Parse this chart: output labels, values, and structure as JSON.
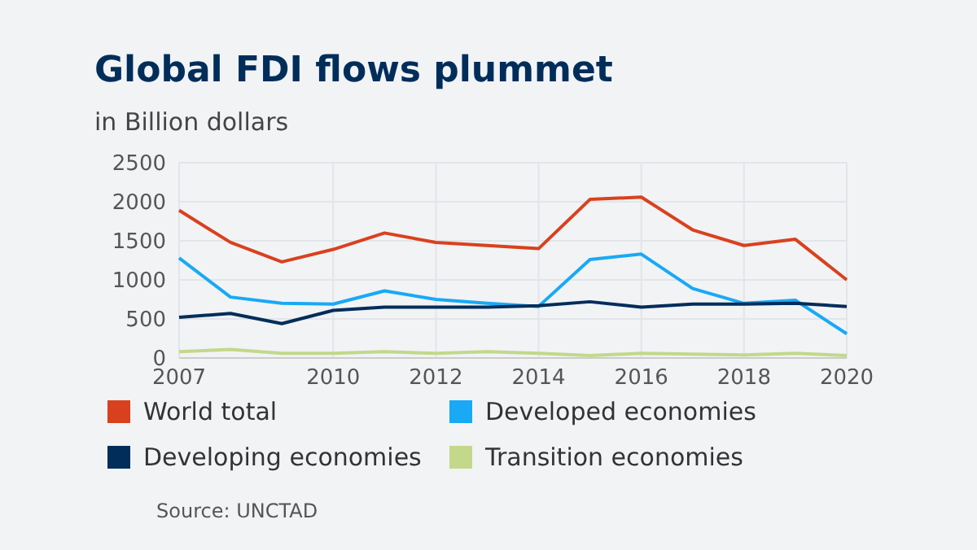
{
  "chart_data": {
    "type": "line",
    "title": "Global FDI flows plummet",
    "subtitle": "in Billion dollars",
    "x": [
      2007,
      2008,
      2009,
      2010,
      2011,
      2012,
      2013,
      2014,
      2015,
      2016,
      2017,
      2018,
      2019,
      2020
    ],
    "series": [
      {
        "name": "World total",
        "color": "#d9411e",
        "values": [
          1890,
          1480,
          1230,
          1390,
          1600,
          1480,
          1440,
          1400,
          2030,
          2060,
          1640,
          1440,
          1520,
          1000
        ]
      },
      {
        "name": "Developed economies",
        "color": "#19a9f5",
        "values": [
          1280,
          780,
          700,
          690,
          860,
          750,
          700,
          660,
          1260,
          1330,
          890,
          700,
          740,
          310
        ]
      },
      {
        "name": "Developing economies",
        "color": "#002d5a",
        "values": [
          520,
          570,
          440,
          610,
          650,
          650,
          650,
          670,
          720,
          650,
          690,
          690,
          700,
          660
        ]
      },
      {
        "name": "Transition economies",
        "color": "#c3d88a",
        "values": [
          80,
          110,
          60,
          60,
          80,
          60,
          80,
          60,
          30,
          60,
          50,
          40,
          60,
          30
        ]
      }
    ],
    "xlim": [
      2007,
      2020
    ],
    "xticks": [
      2007,
      2010,
      2012,
      2014,
      2016,
      2018,
      2020
    ],
    "ylim": [
      0,
      2500
    ],
    "yticks": [
      0,
      500,
      1000,
      1500,
      2000,
      2500
    ],
    "grid": true,
    "legend": "bottom",
    "marker": "none",
    "line_style": "solid",
    "annotations": [
      "Source: UNCTAD"
    ]
  }
}
